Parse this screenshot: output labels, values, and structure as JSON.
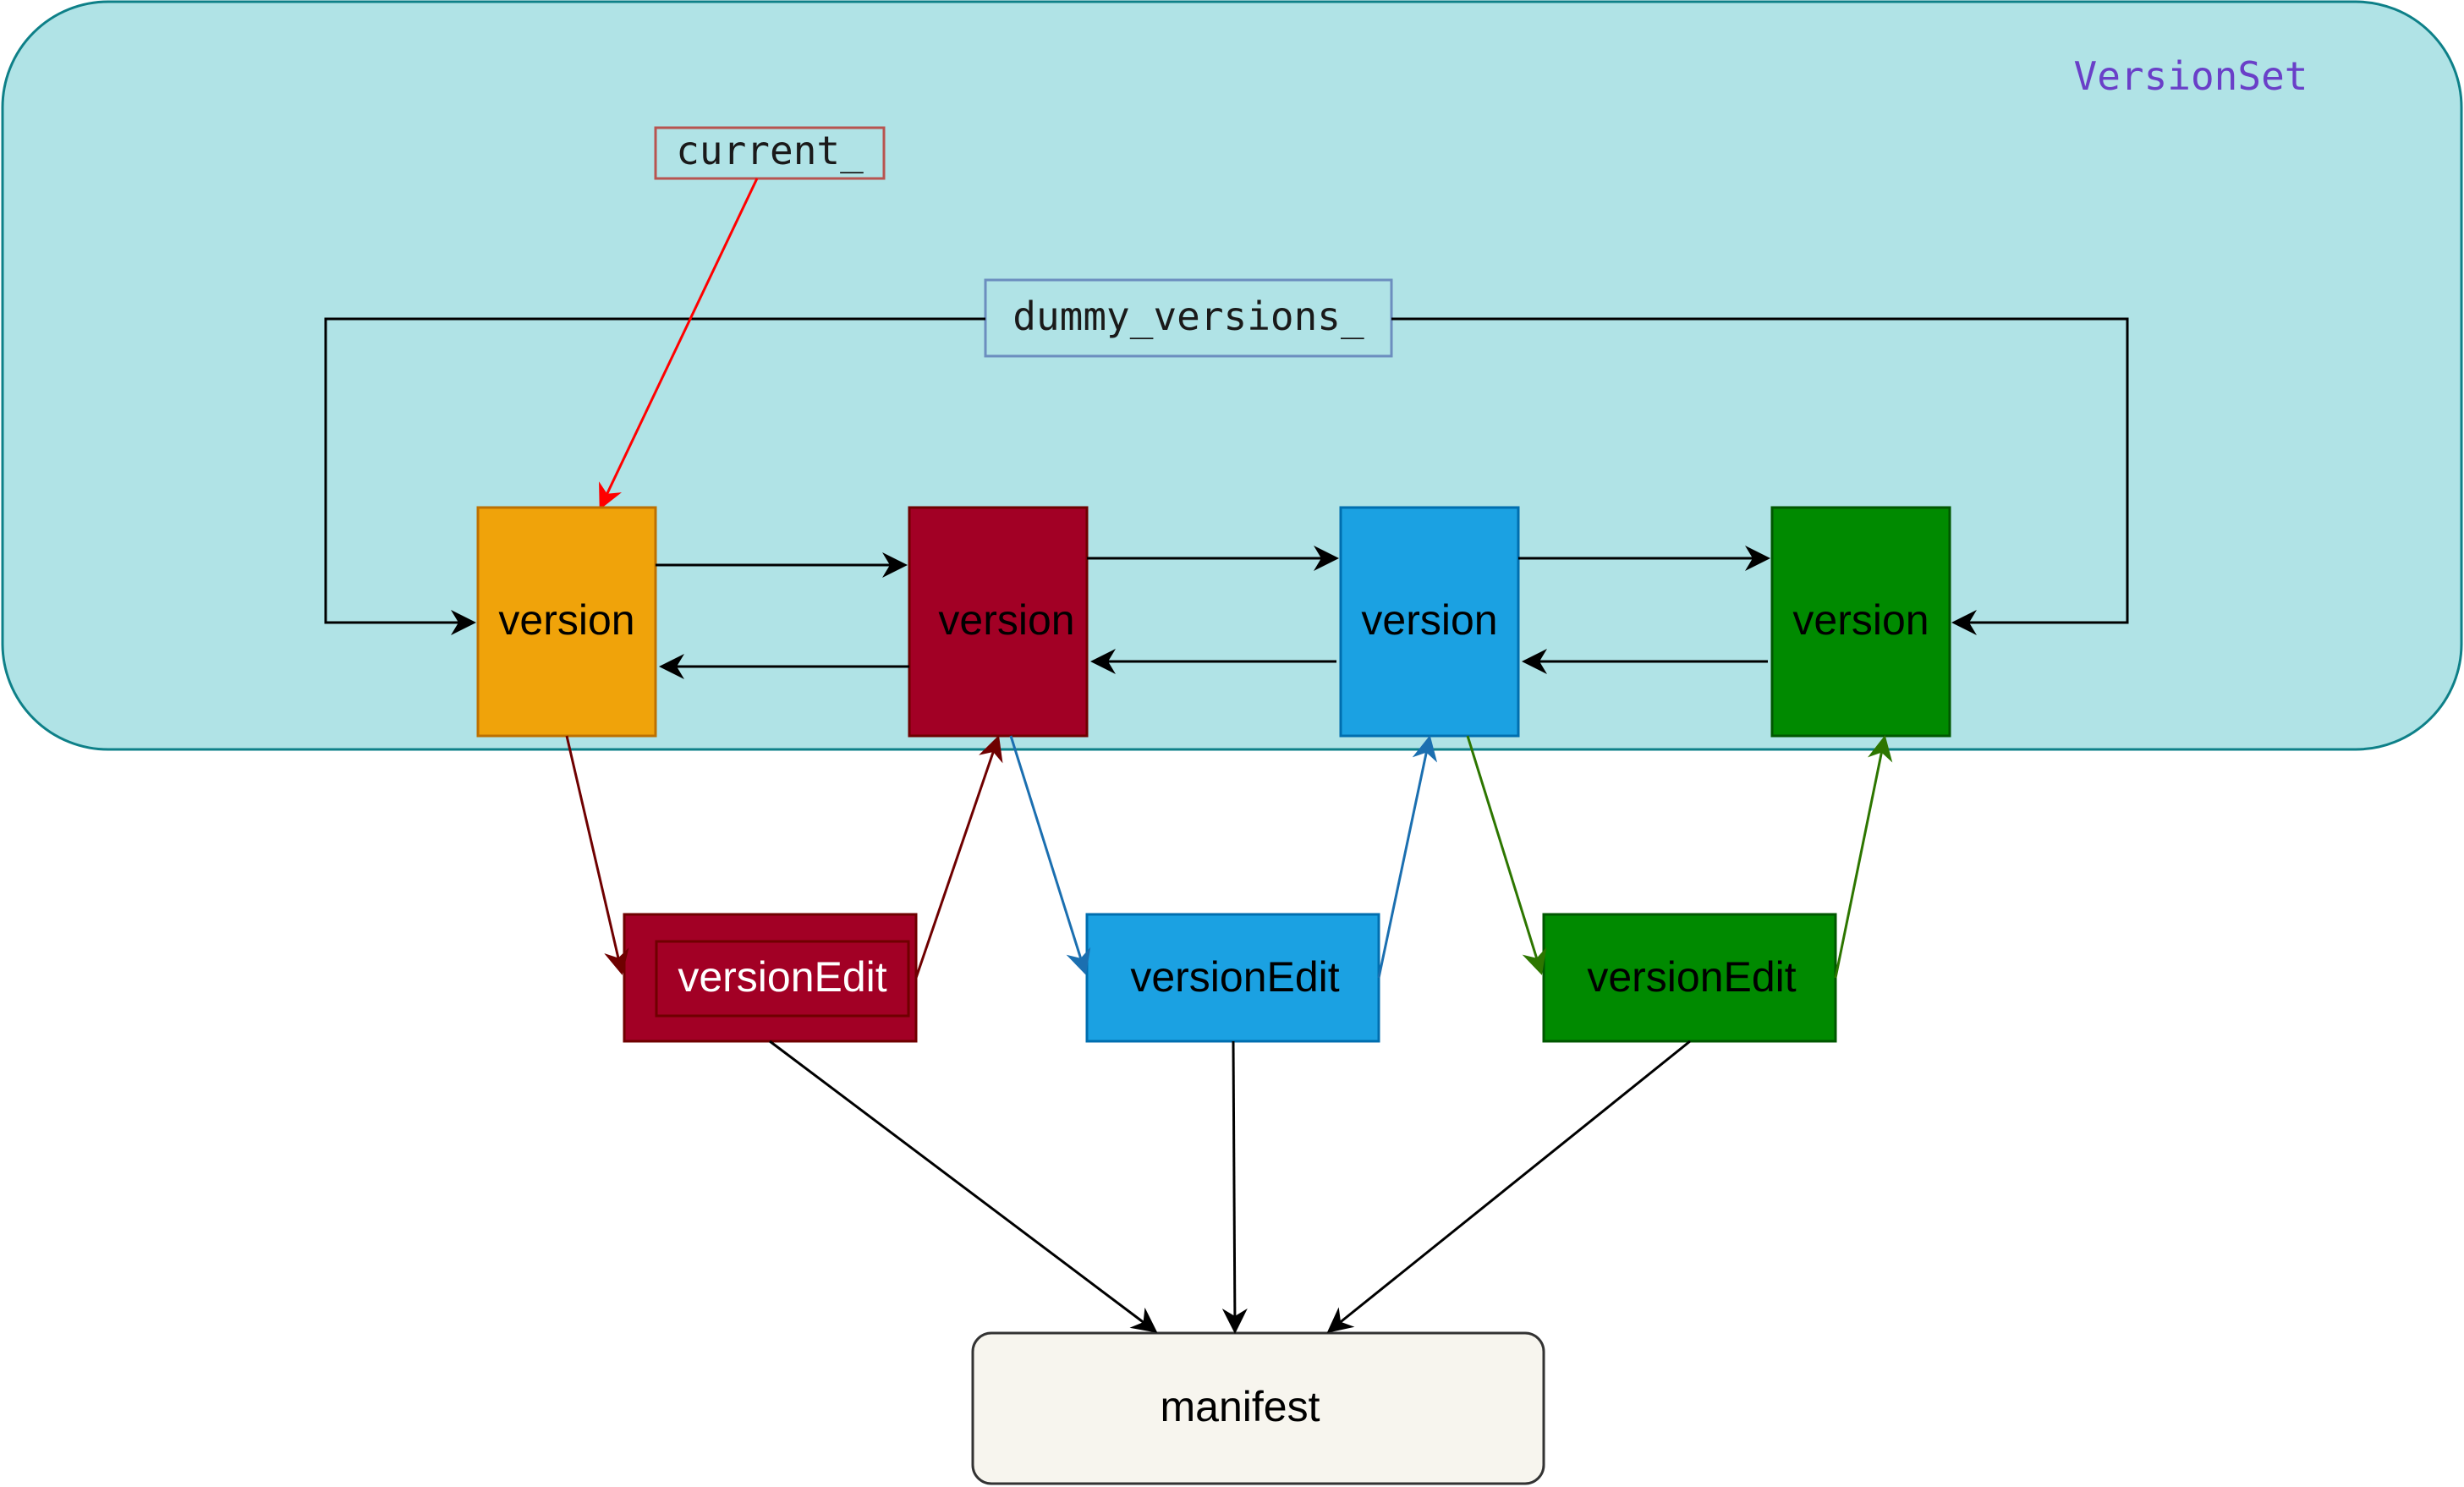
{
  "container": {
    "label": "VersionSet",
    "label_color": "#6a3fc8",
    "fill": "#b0e3e6",
    "stroke": "#0e8088"
  },
  "pointers": {
    "current": {
      "label": "current_",
      "stroke": "#b85450",
      "arrow_color": "#ff0000"
    },
    "dummy": {
      "label": "dummy_versions_",
      "stroke": "#6c8ebf"
    }
  },
  "versions": [
    {
      "label": "version",
      "fill": "#f0a30a",
      "stroke": "#bd7000",
      "text_color": "#000000"
    },
    {
      "label": "version",
      "fill": "#a20025",
      "stroke": "#6f0000",
      "text_color": "#000000"
    },
    {
      "label": "version",
      "fill": "#1ba1e2",
      "stroke": "#006eaf",
      "text_color": "#000000"
    },
    {
      "label": "version",
      "fill": "#008a00",
      "stroke": "#005700",
      "text_color": "#000000"
    }
  ],
  "edits": [
    {
      "label": "versionEdit",
      "fill": "#a20025",
      "stroke": "#6f0000",
      "text_color": "#ffffff",
      "arrow_color": "#6f0000"
    },
    {
      "label": "versionEdit",
      "fill": "#1ba1e2",
      "stroke": "#006eaf",
      "text_color": "#000000",
      "arrow_color": "#1b6fb0"
    },
    {
      "label": "versionEdit",
      "fill": "#008a00",
      "stroke": "#005700",
      "text_color": "#000000",
      "arrow_color": "#2d7600"
    }
  ],
  "manifest": {
    "label": "manifest",
    "fill": "#f7f5ee",
    "stroke": "#333333"
  }
}
